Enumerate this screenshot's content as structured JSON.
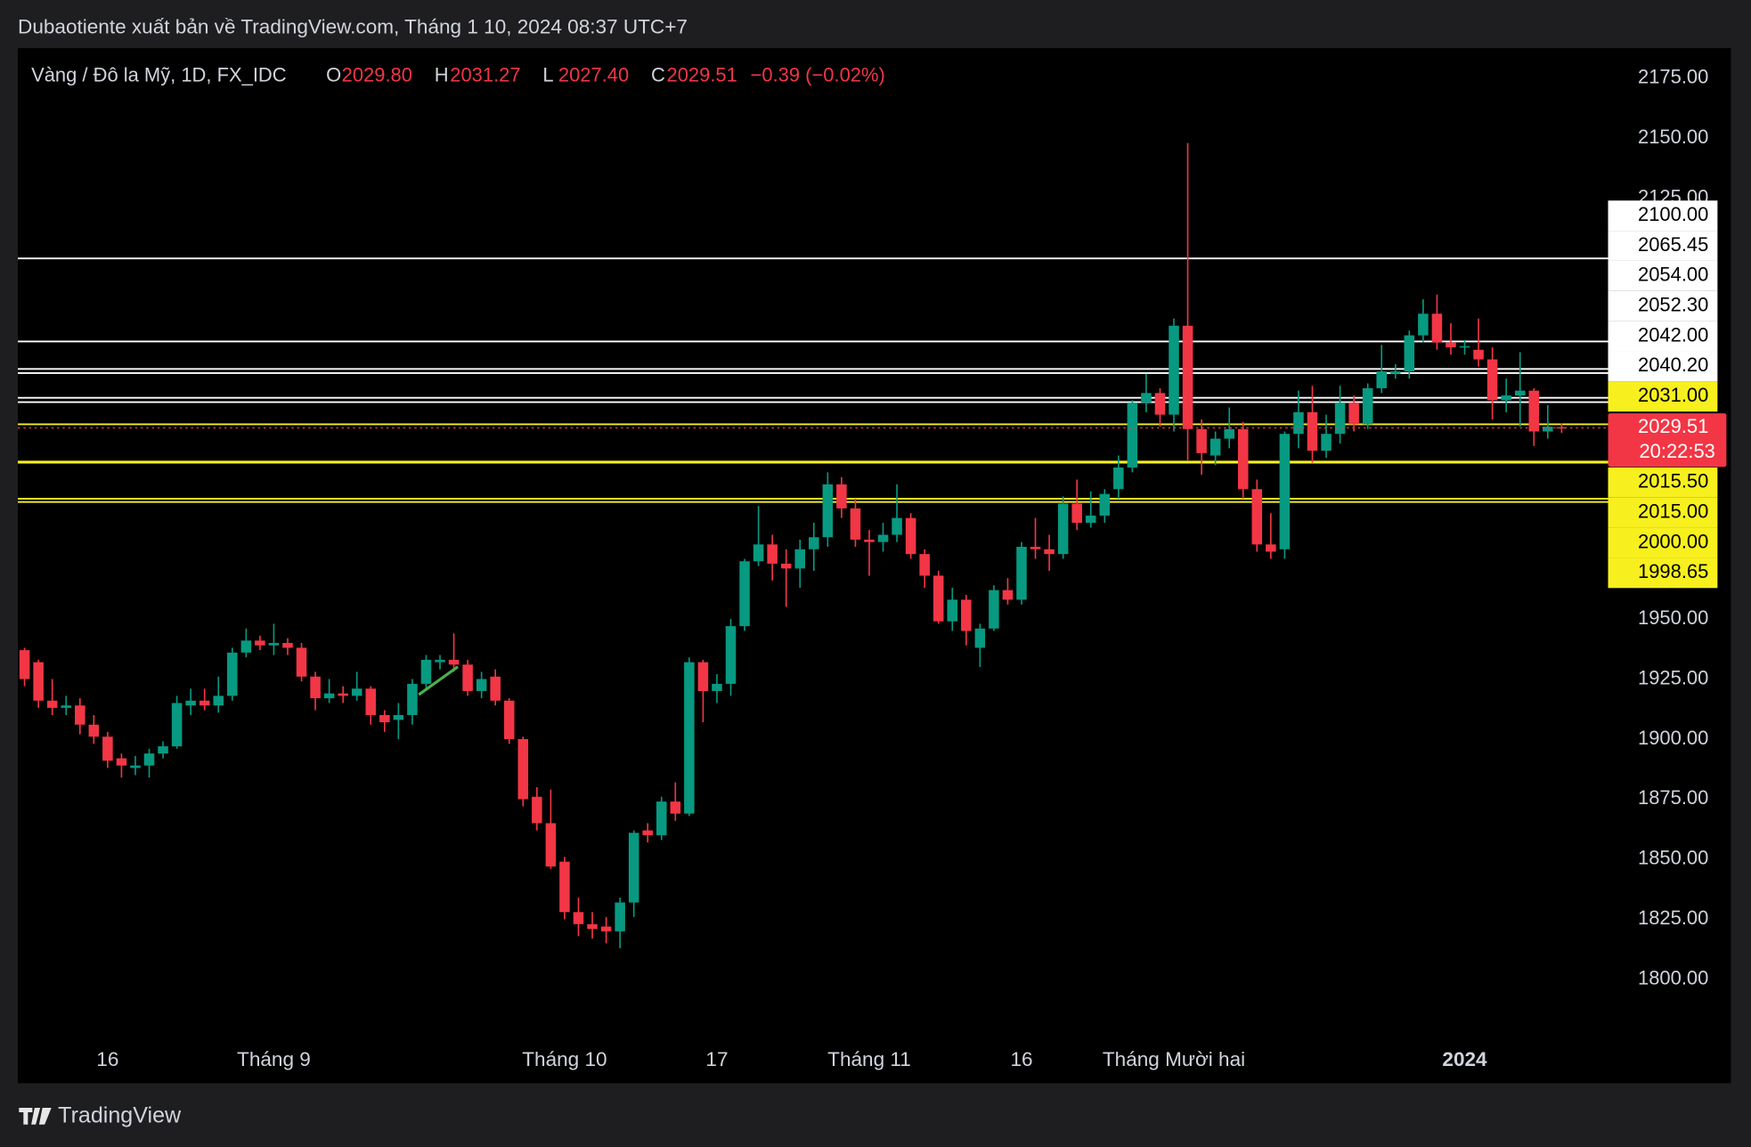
{
  "header": {
    "publisher": "Dubaotiente xuất bản về TradingView.com, Tháng 1 10, 2024 08:37 UTC+7",
    "brand": "TradingView"
  },
  "chart_data": {
    "type": "candlestick",
    "title": "Vàng / Đô la Mỹ, 1D, FX_IDC",
    "legend_fields": [
      {
        "key": "O",
        "value": "2029.80"
      },
      {
        "key": "H",
        "value": "2031.27"
      },
      {
        "key": "L",
        "value": "2027.40"
      },
      {
        "key": "C",
        "value": "2029.51"
      }
    ],
    "change": "−0.39 (−0.02%)",
    "up_color": "#089981",
    "down_color": "#f23645",
    "open": [
      1937,
      1932,
      1916,
      1913,
      1914,
      1906,
      1901,
      1892,
      1888,
      1889,
      1894,
      1897,
      1914,
      1916,
      1914,
      1918,
      1936,
      1941,
      1939,
      1940,
      1938,
      1926,
      1917,
      1919,
      1918,
      1921,
      1910,
      1908,
      1910,
      1923,
      1932,
      1933,
      1931,
      1920,
      1926,
      1916,
      1900,
      1876,
      1865,
      1849,
      1828,
      1823,
      1822,
      1820,
      1832,
      1862,
      1860,
      1874,
      1869,
      1932,
      1920,
      1923,
      1947,
      1974,
      1981,
      1973,
      1971,
      1979,
      1984,
      2006,
      1996,
      1983,
      1982,
      1985,
      1992,
      1977,
      1968,
      1949,
      1958,
      1938,
      1946,
      1962,
      1958,
      1980,
      1979,
      1977,
      1998,
      1990,
      1993,
      2004,
      2013,
      2040,
      2044,
      2035,
      2072,
      2029,
      2018,
      2025,
      2029,
      2004,
      1981,
      1979,
      2027,
      2036,
      2020,
      2027,
      2040,
      2031,
      2046,
      2052,
      2053,
      2068,
      2077,
      2065,
      2063,
      2062,
      2058,
      2041,
      2043,
      2045,
      2028,
      2029.8
    ],
    "high": [
      1938,
      1933,
      1925,
      1918,
      1917,
      1910,
      1903,
      1894,
      1893,
      1896,
      1899,
      1918,
      1921,
      1921,
      1926,
      1938,
      1946,
      1943,
      1948,
      1942,
      1940,
      1928,
      1925,
      1922,
      1928,
      1922,
      1912,
      1915,
      1925,
      1935,
      1935,
      1944,
      1933,
      1928,
      1929,
      1917,
      1901,
      1880,
      1879,
      1851,
      1834,
      1828,
      1826,
      1834,
      1862,
      1865,
      1876,
      1882,
      1934,
      1933,
      1927,
      1950,
      1975,
      1997,
      1985,
      1979,
      1983,
      1990,
      2011,
      2009,
      2000,
      1987,
      1990,
      2006,
      1994,
      1979,
      1970,
      1963,
      1960,
      1948,
      1964,
      1967,
      1982,
      1992,
      1985,
      2001,
      2008,
      2003,
      2004,
      2018,
      2041,
      2052,
      2046,
      2075,
      2148,
      2033,
      2028,
      2038,
      2032,
      2008,
      1994,
      2028,
      2045,
      2047,
      2035,
      2047,
      2043,
      2048,
      2064,
      2056,
      2070,
      2083,
      2085,
      2073,
      2066,
      2075,
      2063,
      2050,
      2061,
      2046,
      2039,
      2031.27
    ],
    "low": [
      1922,
      1913,
      1910,
      1910,
      1902,
      1898,
      1888,
      1884,
      1885,
      1884,
      1892,
      1896,
      1910,
      1912,
      1911,
      1916,
      1934,
      1937,
      1935,
      1935,
      1924,
      1912,
      1915,
      1915,
      1916,
      1906,
      1903,
      1900,
      1906,
      1920,
      1929,
      1928,
      1918,
      1917,
      1914,
      1898,
      1872,
      1862,
      1846,
      1825,
      1818,
      1817,
      1815,
      1813,
      1826,
      1857,
      1858,
      1866,
      1868,
      1907,
      1915,
      1918,
      1945,
      1972,
      1966,
      1955,
      1963,
      1970,
      1980,
      1992,
      1980,
      1968,
      1978,
      1982,
      1975,
      1963,
      1948,
      1945,
      1939,
      1930,
      1945,
      1956,
      1956,
      1975,
      1970,
      1975,
      1987,
      1988,
      1990,
      2000,
      2011,
      2036,
      2030,
      2028,
      2016,
      2010,
      2014,
      2021,
      2000,
      1978,
      1975,
      1975,
      2021,
      2015,
      2017,
      2023,
      2028,
      2029,
      2044,
      2050,
      2050,
      2065,
      2062,
      2060,
      2060,
      2055,
      2033,
      2036,
      2030,
      2022,
      2025,
      2027.4
    ],
    "close": [
      1925,
      1916,
      1913,
      1914,
      1906,
      1901,
      1891,
      1889,
      1889,
      1894,
      1897,
      1915,
      1916,
      1914,
      1918,
      1936,
      1941,
      1939,
      1940,
      1938,
      1926,
      1917,
      1919,
      1918,
      1921,
      1910,
      1907,
      1910,
      1923,
      1933,
      1933,
      1931,
      1920,
      1925,
      1916,
      1900,
      1875,
      1865,
      1847,
      1828,
      1823,
      1821,
      1820,
      1832,
      1861,
      1860,
      1874,
      1869,
      1932,
      1920,
      1923,
      1947,
      1974,
      1981,
      1973,
      1971,
      1979,
      1984,
      2006,
      1996,
      1983,
      1982,
      1985,
      1992,
      1977,
      1968,
      1949,
      1958,
      1945,
      1946,
      1962,
      1958,
      1980,
      1979,
      1977,
      1998,
      1990,
      1993,
      2002,
      2013,
      2040,
      2044,
      2035,
      2072,
      2029,
      2019,
      2025,
      2029,
      2004,
      1981,
      1978,
      2027,
      2036,
      2020,
      2027,
      2040,
      2031,
      2046,
      2053,
      2053,
      2068,
      2077,
      2065,
      2063,
      2063.5,
      2058,
      2041,
      2043,
      2045,
      2028,
      2030,
      2029.51
    ],
    "last_label": "2029.51",
    "countdown": "20:22:53",
    "levels": [
      {
        "value": 2100,
        "label": "2100.00",
        "color": "#ffffff"
      },
      {
        "value": 2065.45,
        "label": "2065.45",
        "color": "#ffffff"
      },
      {
        "value": 2054,
        "label": "2054.00",
        "color": "#ffffff"
      },
      {
        "value": 2052.3,
        "label": "2052.30",
        "color": "#ffffff"
      },
      {
        "value": 2042,
        "label": "2042.00",
        "color": "#ffffff"
      },
      {
        "value": 2040.2,
        "label": "2040.20",
        "color": "#ffffff"
      },
      {
        "value": 2031,
        "label": "2031.00",
        "color": "#f7f01e"
      },
      {
        "value": 2015.5,
        "label": "2015.50",
        "color": "#f7f01e"
      },
      {
        "value": 2015,
        "label": "2015.00",
        "color": "#f7f01e"
      },
      {
        "value": 2000,
        "label": "2000.00",
        "color": "#f7f01e"
      },
      {
        "value": 1998.65,
        "label": "1998.65",
        "color": "#f7f01e"
      }
    ],
    "ylim": [
      1775.4,
      2187.5
    ],
    "yticks": [
      {
        "value": 2175,
        "label": "2175.00"
      },
      {
        "value": 2150,
        "label": "2150.00"
      },
      {
        "value": 2125,
        "label": "2125.00"
      },
      {
        "value": 1950,
        "label": "1950.00"
      },
      {
        "value": 1925,
        "label": "1925.00"
      },
      {
        "value": 1900,
        "label": "1900.00"
      },
      {
        "value": 1875,
        "label": "1875.00"
      },
      {
        "value": 1850,
        "label": "1850.00"
      },
      {
        "value": 1825,
        "label": "1825.00"
      },
      {
        "value": 1800,
        "label": "1800.00"
      }
    ],
    "xticks": [
      {
        "value": 6,
        "label": "16"
      },
      {
        "value": 18,
        "label": "Tháng 9"
      },
      {
        "value": 39,
        "label": "Tháng 10"
      },
      {
        "value": 50,
        "label": "17"
      },
      {
        "value": 61,
        "label": "Tháng 11"
      },
      {
        "value": 72,
        "label": "16"
      },
      {
        "value": 83,
        "label": "Tháng Mười hai"
      },
      {
        "value": 104,
        "label": "2024",
        "bold": true
      }
    ]
  }
}
